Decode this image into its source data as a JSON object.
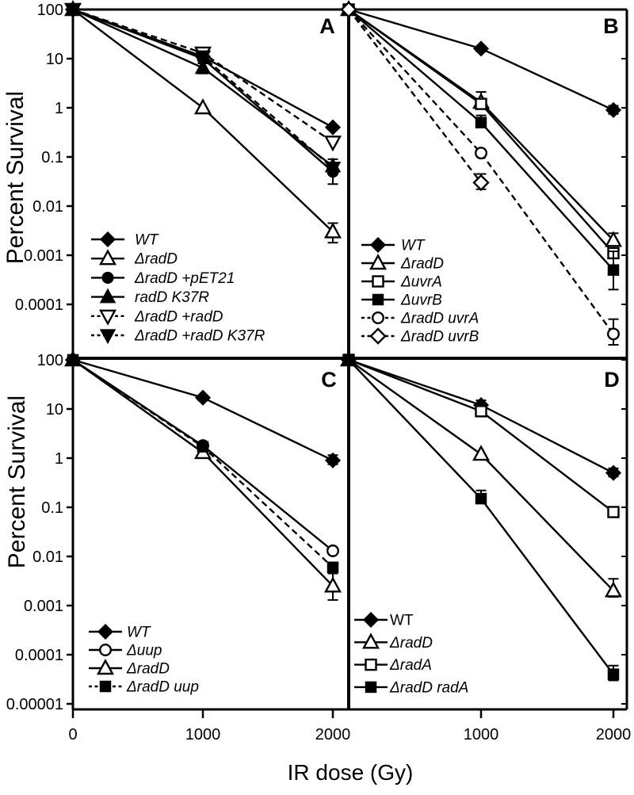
{
  "figure": {
    "ylabel": "Percent Survival",
    "xlabel": "IR dose (Gy)",
    "background": "#ffffff",
    "foreground": "#000000"
  },
  "chart_data": {
    "type": "line",
    "y_scale": "log",
    "xlabel": "IR dose (Gy)",
    "ylabel": "Percent Survival",
    "x_range_gy": [
      0,
      2000
    ],
    "grid": false,
    "x_ticks_left_panels": [
      "0",
      "1000",
      "2000"
    ],
    "x_ticks_right_panels": [
      "1000",
      "2000"
    ],
    "y_ticks_top_row": [
      "100",
      "10",
      "1",
      "0.1",
      "0.01",
      "0.001",
      "0.0001"
    ],
    "y_ticks_bottom_row": [
      "100",
      "10",
      "1",
      "0.1",
      "0.01",
      "0.001",
      "0.0001",
      "0.00001"
    ],
    "panels": [
      {
        "id": "A",
        "row": "top",
        "col": "left",
        "series": [
          {
            "label": "WT",
            "italic": true,
            "marker": "diamond",
            "fill": "filled",
            "line": "solid",
            "x": [
              0,
              1000,
              2000
            ],
            "y": [
              100,
              11,
              0.4
            ],
            "yerr": [
              null,
              null,
              null
            ]
          },
          {
            "label": "ΔradD",
            "italic": true,
            "marker": "triangle",
            "fill": "open",
            "line": "solid",
            "x": [
              0,
              1000,
              2000
            ],
            "y": [
              100,
              1.0,
              0.003
            ],
            "yerr": [
              null,
              null,
              [
                0.0018,
                0.0045
              ]
            ]
          },
          {
            "label": "ΔradD +pET21",
            "italic": true,
            "marker": "circle",
            "fill": "filled",
            "line": "solid",
            "x": [
              0,
              1000,
              2000
            ],
            "y": [
              100,
              10,
              0.05
            ],
            "yerr": [
              null,
              [
                8,
                12
              ],
              [
                0.028,
                0.09
              ]
            ]
          },
          {
            "label": "radD K37R",
            "italic": true,
            "marker": "triangle",
            "fill": "filled",
            "line": "solid",
            "x": [
              0,
              1000,
              2000
            ],
            "y": [
              100,
              6.5,
              0.065
            ],
            "yerr": [
              null,
              [
                5,
                9
              ],
              null
            ]
          },
          {
            "label": "ΔradD +radD",
            "italic": true,
            "marker": "triangle-down",
            "fill": "open",
            "line": "dashed",
            "x": [
              0,
              1000,
              2000
            ],
            "y": [
              100,
              13,
              0.2
            ],
            "yerr": [
              null,
              null,
              null
            ]
          },
          {
            "label": "ΔradD +radD K37R",
            "italic": true,
            "marker": "triangle-down",
            "fill": "filled",
            "line": "dashed",
            "x": [
              0,
              1000,
              2000
            ],
            "y": [
              100,
              11,
              0.06
            ],
            "yerr": [
              null,
              null,
              null
            ]
          }
        ]
      },
      {
        "id": "B",
        "row": "top",
        "col": "right",
        "series": [
          {
            "label": "WT",
            "italic": true,
            "marker": "diamond",
            "fill": "filled",
            "line": "solid",
            "x": [
              0,
              1000,
              2000
            ],
            "y": [
              100,
              16,
              0.9
            ],
            "yerr": [
              null,
              [
                14,
                18
              ],
              [
                0.75,
                1.1
              ]
            ]
          },
          {
            "label": "ΔradD",
            "italic": true,
            "marker": "triangle",
            "fill": "open",
            "line": "solid",
            "x": [
              0,
              1000,
              2000
            ],
            "y": [
              100,
              1.3,
              0.002
            ],
            "yerr": [
              null,
              [
                1.0,
                2.1
              ],
              [
                0.0017,
                0.0028
              ]
            ]
          },
          {
            "label": "ΔuvrA",
            "italic": true,
            "marker": "square",
            "fill": "open",
            "line": "solid",
            "x": [
              0,
              1000,
              2000
            ],
            "y": [
              100,
              1.2,
              0.0011
            ],
            "yerr": [
              null,
              null,
              null
            ]
          },
          {
            "label": "ΔuvrB",
            "italic": true,
            "marker": "square",
            "fill": "filled",
            "line": "solid",
            "x": [
              0,
              1000,
              2000
            ],
            "y": [
              100,
              0.5,
              0.0005
            ],
            "yerr": [
              null,
              [
                0.4,
                0.7
              ],
              [
                0.0002,
                0.0012
              ]
            ]
          },
          {
            "label": "ΔradD uvrA",
            "italic": true,
            "marker": "circle",
            "fill": "open",
            "line": "dashed",
            "x": [
              0,
              1000,
              2000
            ],
            "y": [
              100,
              0.12,
              2.5e-05
            ],
            "yerr": [
              null,
              null,
              [
                1.5e-05,
                5e-05
              ]
            ]
          },
          {
            "label": "ΔradD uvrB",
            "italic": true,
            "marker": "diamond",
            "fill": "open",
            "line": "dashed",
            "x": [
              0,
              1000
            ],
            "y": [
              100,
              0.03
            ],
            "yerr": [
              null,
              [
                0.022,
                0.045
              ]
            ]
          }
        ]
      },
      {
        "id": "C",
        "row": "bottom",
        "col": "left",
        "series": [
          {
            "label": "WT",
            "italic": true,
            "marker": "diamond",
            "fill": "filled",
            "line": "solid",
            "x": [
              0,
              1000,
              2000
            ],
            "y": [
              100,
              17,
              0.9
            ],
            "yerr": [
              null,
              [
                15,
                19
              ],
              [
                0.75,
                1.15
              ]
            ]
          },
          {
            "label": "Δuup",
            "italic": true,
            "marker": "circle",
            "fill": "open",
            "line": "solid",
            "x": [
              0,
              1000,
              2000
            ],
            "y": [
              100,
              1.8,
              0.013
            ],
            "yerr": [
              null,
              null,
              null
            ]
          },
          {
            "label": "ΔradD",
            "italic": true,
            "marker": "triangle",
            "fill": "open",
            "line": "solid",
            "x": [
              0,
              1000,
              2000
            ],
            "y": [
              100,
              1.3,
              0.0025
            ],
            "yerr": [
              null,
              [
                1.1,
                1.7
              ],
              [
                0.0013,
                0.0045
              ]
            ]
          },
          {
            "label": "ΔradD uup",
            "italic": true,
            "marker": "square",
            "fill": "filled",
            "line": "dashed",
            "x": [
              0,
              1000,
              2000
            ],
            "y": [
              100,
              1.7,
              0.006
            ],
            "yerr": [
              null,
              [
                1.4,
                2.1
              ],
              null
            ]
          }
        ]
      },
      {
        "id": "D",
        "row": "bottom",
        "col": "right",
        "series": [
          {
            "label": "WT",
            "italic": false,
            "marker": "diamond",
            "fill": "filled",
            "line": "solid",
            "x": [
              0,
              1000,
              2000
            ],
            "y": [
              100,
              12,
              0.5
            ],
            "yerr": [
              null,
              [
                10,
                15
              ],
              [
                0.42,
                0.62
              ]
            ]
          },
          {
            "label": "ΔradD",
            "italic": true,
            "marker": "triangle",
            "fill": "open",
            "line": "solid",
            "x": [
              0,
              1000,
              2000
            ],
            "y": [
              100,
              1.2,
              0.002
            ],
            "yerr": [
              null,
              null,
              [
                0.0015,
                0.0035
              ]
            ]
          },
          {
            "label": "ΔradA",
            "italic": true,
            "marker": "square",
            "fill": "open",
            "line": "solid",
            "x": [
              0,
              1000,
              2000
            ],
            "y": [
              100,
              9,
              0.08
            ],
            "yerr": [
              null,
              null,
              null
            ]
          },
          {
            "label": "ΔradD radA",
            "italic": true,
            "marker": "square",
            "fill": "filled",
            "line": "solid",
            "x": [
              0,
              1000,
              2000
            ],
            "y": [
              100,
              0.15,
              4e-05
            ],
            "yerr": [
              null,
              [
                0.12,
                0.22
              ],
              [
                3e-05,
                6e-05
              ]
            ]
          }
        ]
      }
    ]
  }
}
